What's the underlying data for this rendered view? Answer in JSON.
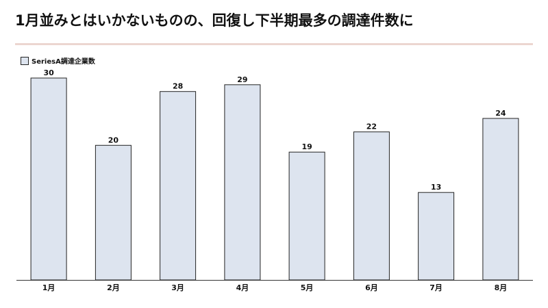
{
  "title": "1月並みとはいかないものの、回復し下半期最多の調達件数に",
  "colors": {
    "divider": "#ecd6d0",
    "bar_fill": "#dde4ef",
    "bar_stroke": "#222222",
    "axis": "#333333"
  },
  "chart_data": {
    "type": "bar",
    "categories": [
      "1月",
      "2月",
      "3月",
      "4月",
      "5月",
      "6月",
      "7月",
      "8月"
    ],
    "series": [
      {
        "name": "SeriesA調達企業数",
        "values": [
          30,
          20,
          28,
          29,
          19,
          22,
          13,
          24
        ]
      }
    ],
    "ylim": [
      0,
      30
    ],
    "grid": false,
    "legend_position": "top-left",
    "data_labels": true
  }
}
